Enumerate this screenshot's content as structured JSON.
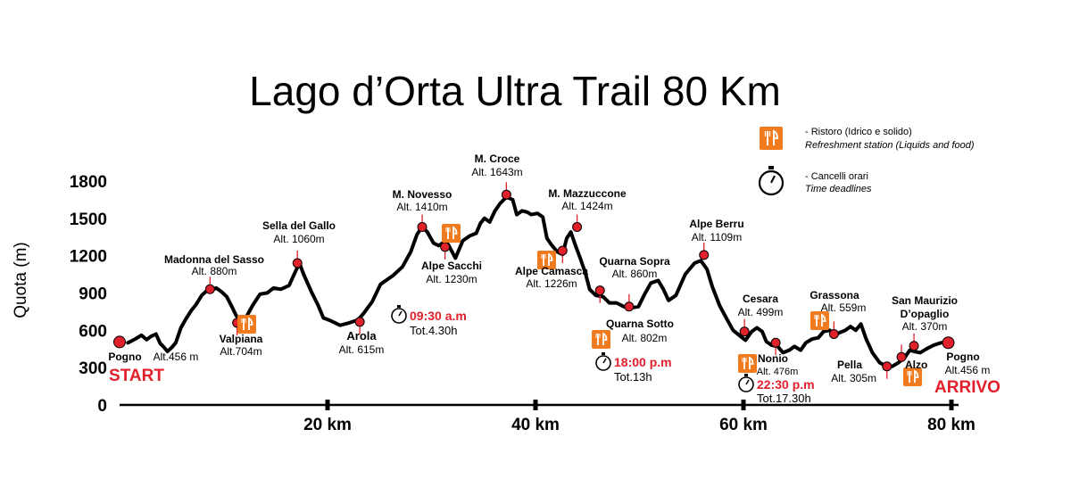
{
  "title": "Lago d’Orta Ultra Trail 80 Km",
  "legend": {
    "ristoro": "- Ristoro (Idrico e solido)",
    "ristoro_en": "Refreshment station (Liquids and food)",
    "cancelli": "- Cancelli orari",
    "cancelli_en": "Time deadlines",
    "ristoro_icon": "fork-knife-icon",
    "cancelli_icon": "stopwatch-icon"
  },
  "colors": {
    "marker": "#e0202a",
    "station": "#f07a1e",
    "line": "#000000"
  },
  "start_label": "START",
  "finish_label": "ARRIVO",
  "chart_data": {
    "type": "line",
    "title": "Lago d’Orta Ultra Trail 80 Km",
    "xlabel": "",
    "ylabel": "Quota (m)",
    "xlim": [
      0,
      80
    ],
    "ylim": [
      0,
      1800
    ],
    "x_ticks": [
      20,
      40,
      60,
      80
    ],
    "x_tick_labels": [
      "20 km",
      "40 km",
      "60 km",
      "80 km"
    ],
    "y_ticks": [
      0,
      300,
      600,
      900,
      1200,
      1500,
      1800
    ],
    "grid": false,
    "profile": [
      [
        0.8,
        500
      ],
      [
        1.5,
        530
      ],
      [
        2.1,
        560
      ],
      [
        2.6,
        525
      ],
      [
        3.0,
        550
      ],
      [
        3.5,
        570
      ],
      [
        3.9,
        495
      ],
      [
        4.2,
        470
      ],
      [
        4.6,
        430
      ],
      [
        5.0,
        460
      ],
      [
        5.4,
        500
      ],
      [
        5.9,
        620
      ],
      [
        6.3,
        680
      ],
      [
        6.9,
        760
      ],
      [
        7.3,
        800
      ],
      [
        7.9,
        880
      ],
      [
        8.4,
        920
      ],
      [
        8.7,
        930
      ],
      [
        9.3,
        940
      ],
      [
        9.8,
        910
      ],
      [
        10.3,
        870
      ],
      [
        10.8,
        790
      ],
      [
        11.2,
        720
      ],
      [
        11.5,
        690
      ],
      [
        12.2,
        710
      ],
      [
        12.8,
        800
      ],
      [
        13.5,
        890
      ],
      [
        14.2,
        900
      ],
      [
        14.8,
        940
      ],
      [
        15.5,
        930
      ],
      [
        16.3,
        960
      ],
      [
        16.9,
        1070
      ],
      [
        17.3,
        1140
      ],
      [
        17.7,
        1050
      ],
      [
        18.5,
        900
      ],
      [
        19.1,
        800
      ],
      [
        19.6,
        700
      ],
      [
        20.2,
        680
      ],
      [
        21.2,
        640
      ],
      [
        22.1,
        660
      ],
      [
        22.8,
        680
      ],
      [
        23.1,
        700
      ],
      [
        23.5,
        740
      ],
      [
        24.3,
        830
      ],
      [
        25.1,
        970
      ],
      [
        26.3,
        1040
      ],
      [
        27.2,
        1110
      ],
      [
        28.0,
        1230
      ],
      [
        28.6,
        1370
      ],
      [
        29.1,
        1430
      ],
      [
        29.6,
        1390
      ],
      [
        30.2,
        1300
      ],
      [
        30.7,
        1280
      ],
      [
        31.2,
        1310
      ],
      [
        31.6,
        1290
      ],
      [
        32.3,
        1180
      ],
      [
        33.0,
        1320
      ],
      [
        33.7,
        1360
      ],
      [
        34.3,
        1380
      ],
      [
        34.7,
        1460
      ],
      [
        35.1,
        1500
      ],
      [
        35.6,
        1470
      ],
      [
        36.1,
        1560
      ],
      [
        36.6,
        1620
      ],
      [
        37.2,
        1670
      ],
      [
        37.8,
        1650
      ],
      [
        38.2,
        1530
      ],
      [
        38.7,
        1560
      ],
      [
        39.2,
        1550
      ],
      [
        39.6,
        1530
      ],
      [
        40.2,
        1540
      ],
      [
        40.7,
        1510
      ],
      [
        41.1,
        1340
      ],
      [
        41.5,
        1290
      ],
      [
        42.1,
        1230
      ],
      [
        42.6,
        1210
      ],
      [
        43.0,
        1340
      ],
      [
        43.4,
        1390
      ],
      [
        43.8,
        1290
      ],
      [
        44.3,
        1180
      ],
      [
        44.8,
        1060
      ],
      [
        45.2,
        930
      ],
      [
        45.8,
        880
      ],
      [
        46.5,
        870
      ],
      [
        47.1,
        820
      ],
      [
        47.8,
        820
      ],
      [
        48.5,
        790
      ],
      [
        49.2,
        780
      ],
      [
        49.9,
        790
      ],
      [
        50.5,
        890
      ],
      [
        51.1,
        980
      ],
      [
        51.8,
        1000
      ],
      [
        52.3,
        930
      ],
      [
        52.8,
        840
      ],
      [
        53.5,
        880
      ],
      [
        54.4,
        1050
      ],
      [
        55.3,
        1140
      ],
      [
        55.9,
        1160
      ],
      [
        56.5,
        1090
      ],
      [
        57.0,
        950
      ],
      [
        57.7,
        800
      ],
      [
        58.4,
        690
      ],
      [
        59.0,
        600
      ],
      [
        59.6,
        560
      ],
      [
        60.2,
        520
      ],
      [
        60.8,
        590
      ],
      [
        61.3,
        620
      ],
      [
        61.8,
        590
      ],
      [
        62.2,
        510
      ],
      [
        62.7,
        480
      ],
      [
        63.3,
        470
      ],
      [
        63.8,
        420
      ],
      [
        64.4,
        440
      ],
      [
        64.9,
        470
      ],
      [
        65.5,
        440
      ],
      [
        66.0,
        500
      ],
      [
        66.6,
        530
      ],
      [
        67.2,
        540
      ],
      [
        67.7,
        590
      ],
      [
        68.3,
        600
      ],
      [
        68.8,
        560
      ],
      [
        69.2,
        580
      ],
      [
        69.8,
        600
      ],
      [
        70.3,
        630
      ],
      [
        70.8,
        600
      ],
      [
        71.3,
        650
      ],
      [
        71.8,
        530
      ],
      [
        72.4,
        420
      ],
      [
        73.1,
        340
      ],
      [
        73.8,
        310
      ],
      [
        74.3,
        310
      ],
      [
        74.9,
        340
      ],
      [
        75.5,
        380
      ],
      [
        76.0,
        440
      ],
      [
        76.4,
        430
      ],
      [
        77.0,
        420
      ],
      [
        77.6,
        450
      ],
      [
        78.3,
        480
      ],
      [
        79.0,
        500
      ],
      [
        79.4,
        500
      ]
    ],
    "points": [
      {
        "name": "Pogno",
        "alt_label": "Alt.456 m",
        "x": 0.0,
        "y": 506
      },
      {
        "name": "Madonna del Sasso",
        "alt_label": "Alt. 880m",
        "x": 8.7,
        "y": 930
      },
      {
        "name": "Valpiana",
        "alt_label": "Alt.704m",
        "x": 11.3,
        "y": 660
      },
      {
        "name": "Sella del Gallo",
        "alt_label": "Alt. 1060m",
        "x": 17.1,
        "y": 1140
      },
      {
        "name": "Arola",
        "alt_label": "Alt. 615m",
        "x": 23.1,
        "y": 668
      },
      {
        "name": "M. Novesso",
        "alt_label": "Alt. 1410m",
        "x": 29.1,
        "y": 1430
      },
      {
        "name": "Alpe Sacchi",
        "alt_label": "Alt. 1230m",
        "x": 31.3,
        "y": 1270
      },
      {
        "name": "M. Croce",
        "alt_label": "Alt. 1643m",
        "x": 37.2,
        "y": 1690
      },
      {
        "name": "Alpe Camasca",
        "alt_label": "Alt. 1226m",
        "x": 42.6,
        "y": 1240
      },
      {
        "name": "M. Mazzuccone",
        "alt_label": "Alt. 1424m",
        "x": 44.0,
        "y": 1430
      },
      {
        "name": "Quarna Sopra",
        "alt_label": "Alt. 860m",
        "x": 46.2,
        "y": 920
      },
      {
        "name": "Quarna Sotto",
        "alt_label": "Alt. 802m",
        "x": 49.0,
        "y": 790
      },
      {
        "name": "Alpe Berru",
        "alt_label": "Alt. 1109m",
        "x": 56.2,
        "y": 1205
      },
      {
        "name": "Cesara",
        "alt_label": "Alt. 499m",
        "x": 60.1,
        "y": 590
      },
      {
        "name": "Nonio",
        "alt_label": "Alt. 476m",
        "x": 63.1,
        "y": 500
      },
      {
        "name": "Grassona",
        "alt_label": "Alt. 559m",
        "x": 68.7,
        "y": 570
      },
      {
        "name": "Pella",
        "alt_label": "Alt. 305m",
        "x": 73.8,
        "y": 310
      },
      {
        "name": "Alzo",
        "alt_label": "",
        "x": 75.2,
        "y": 385
      },
      {
        "name": "San Maurizio D’opaglio",
        "alt_label": "Alt. 370m",
        "x": 76.4,
        "y": 475
      },
      {
        "name": "Pogno",
        "alt_label": "Alt.456 m",
        "x": 79.7,
        "y": 500
      }
    ],
    "refreshment_stations_km": [
      12.6,
      31.6,
      41.4,
      46.9,
      60.8,
      67.5,
      75.8
    ],
    "time_deadlines": [
      {
        "time": "09:30 a.m",
        "total": "Tot.4.30h"
      },
      {
        "time": "18:00 p.m",
        "total": "Tot.13h"
      },
      {
        "time": "22:30 p.m",
        "total": "Tot.17.30h"
      }
    ]
  }
}
